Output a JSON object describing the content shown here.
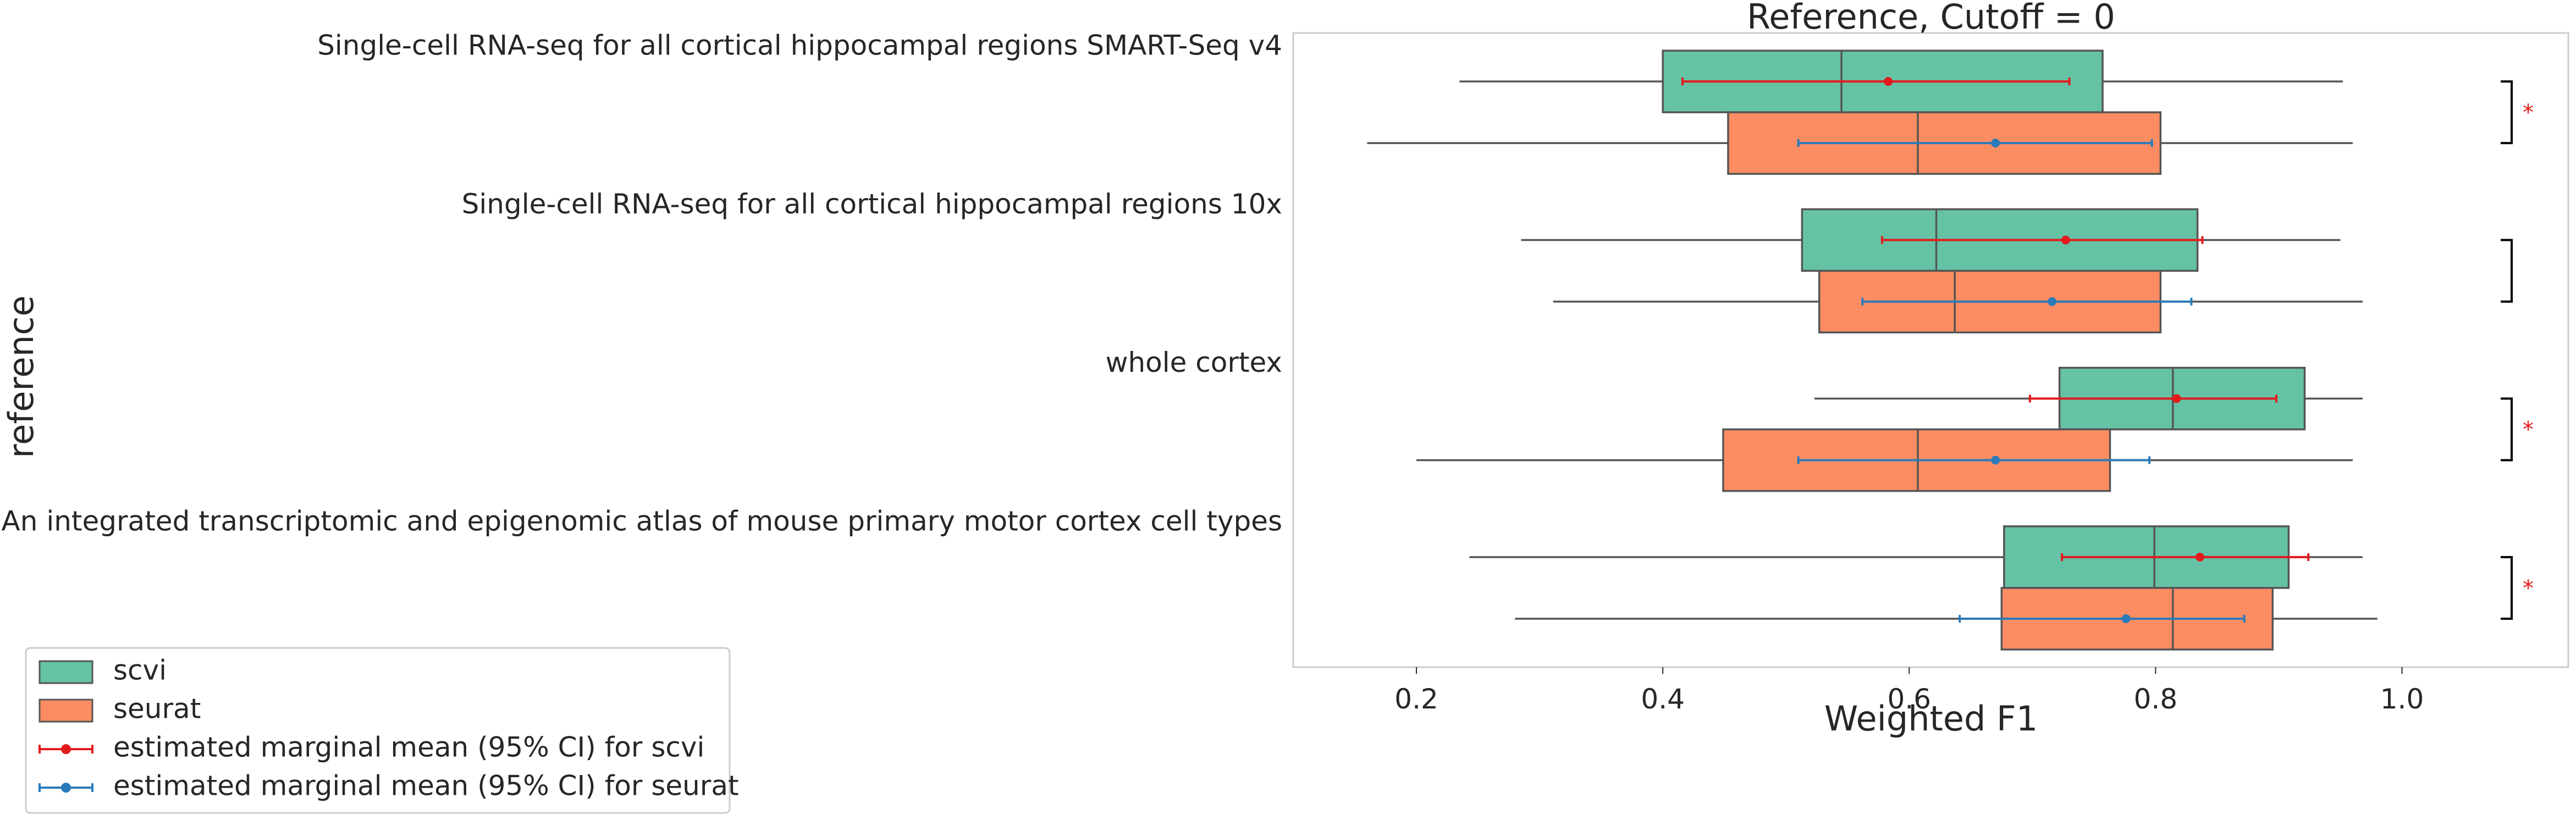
{
  "chart_data": {
    "type": "box",
    "title": "Reference, Cutoff = 0",
    "xlabel": "Weighted F1",
    "ylabel": "reference",
    "xlim": [
      0.1,
      1.135
    ],
    "xticks": [
      0.2,
      0.4,
      0.6,
      0.8,
      1.0
    ],
    "xtick_labels": [
      "0.2",
      "0.4",
      "0.6",
      "0.8",
      "1.0"
    ],
    "grid": false,
    "legend_position": "bottom-left",
    "categories": [
      "Single-cell RNA-seq for all cortical  hippocampal regions SMART-Seq v4",
      "Single-cell RNA-seq for all cortical  hippocampal regions 10x",
      "whole cortex",
      "An integrated transcriptomic and epigenomic atlas of mouse primary motor cortex cell types"
    ],
    "series": [
      {
        "name": "scvi",
        "color": "#66c2a5",
        "boxes": [
          {
            "whisker_low": 0.235,
            "q1": 0.4,
            "median": 0.545,
            "q3": 0.757,
            "whisker_high": 0.952
          },
          {
            "whisker_low": 0.285,
            "q1": 0.513,
            "median": 0.622,
            "q3": 0.834,
            "whisker_high": 0.95
          },
          {
            "whisker_low": 0.523,
            "q1": 0.722,
            "median": 0.814,
            "q3": 0.921,
            "whisker_high": 0.968
          },
          {
            "whisker_low": 0.243,
            "q1": 0.677,
            "median": 0.799,
            "q3": 0.908,
            "whisker_high": 0.968
          }
        ]
      },
      {
        "name": "seurat",
        "color": "#fc8d62",
        "boxes": [
          {
            "whisker_low": 0.16,
            "q1": 0.453,
            "median": 0.607,
            "q3": 0.804,
            "whisker_high": 0.96
          },
          {
            "whisker_low": 0.311,
            "q1": 0.527,
            "median": 0.637,
            "q3": 0.804,
            "whisker_high": 0.968
          },
          {
            "whisker_low": 0.2,
            "q1": 0.449,
            "median": 0.607,
            "q3": 0.763,
            "whisker_high": 0.96
          },
          {
            "whisker_low": 0.28,
            "q1": 0.675,
            "median": 0.814,
            "q3": 0.895,
            "whisker_high": 0.98
          }
        ]
      }
    ],
    "marginal_means": [
      {
        "name": "estimated marginal mean (95% CI) for scvi",
        "color": "#e31a1c",
        "points": [
          {
            "mean": 0.583,
            "ci_low": 0.416,
            "ci_high": 0.73
          },
          {
            "mean": 0.727,
            "ci_low": 0.578,
            "ci_high": 0.838
          },
          {
            "mean": 0.817,
            "ci_low": 0.698,
            "ci_high": 0.898
          },
          {
            "mean": 0.836,
            "ci_low": 0.724,
            "ci_high": 0.924
          }
        ]
      },
      {
        "name": "estimated marginal mean (95% CI) for seurat",
        "color": "#2b7bba",
        "points": [
          {
            "mean": 0.67,
            "ci_low": 0.51,
            "ci_high": 0.797
          },
          {
            "mean": 0.716,
            "ci_low": 0.562,
            "ci_high": 0.829
          },
          {
            "mean": 0.67,
            "ci_low": 0.51,
            "ci_high": 0.795
          },
          {
            "mean": 0.776,
            "ci_low": 0.641,
            "ci_high": 0.872
          }
        ]
      }
    ],
    "significance": [
      "*",
      "",
      "*",
      "*"
    ],
    "significance_color": "#e31a1c"
  }
}
